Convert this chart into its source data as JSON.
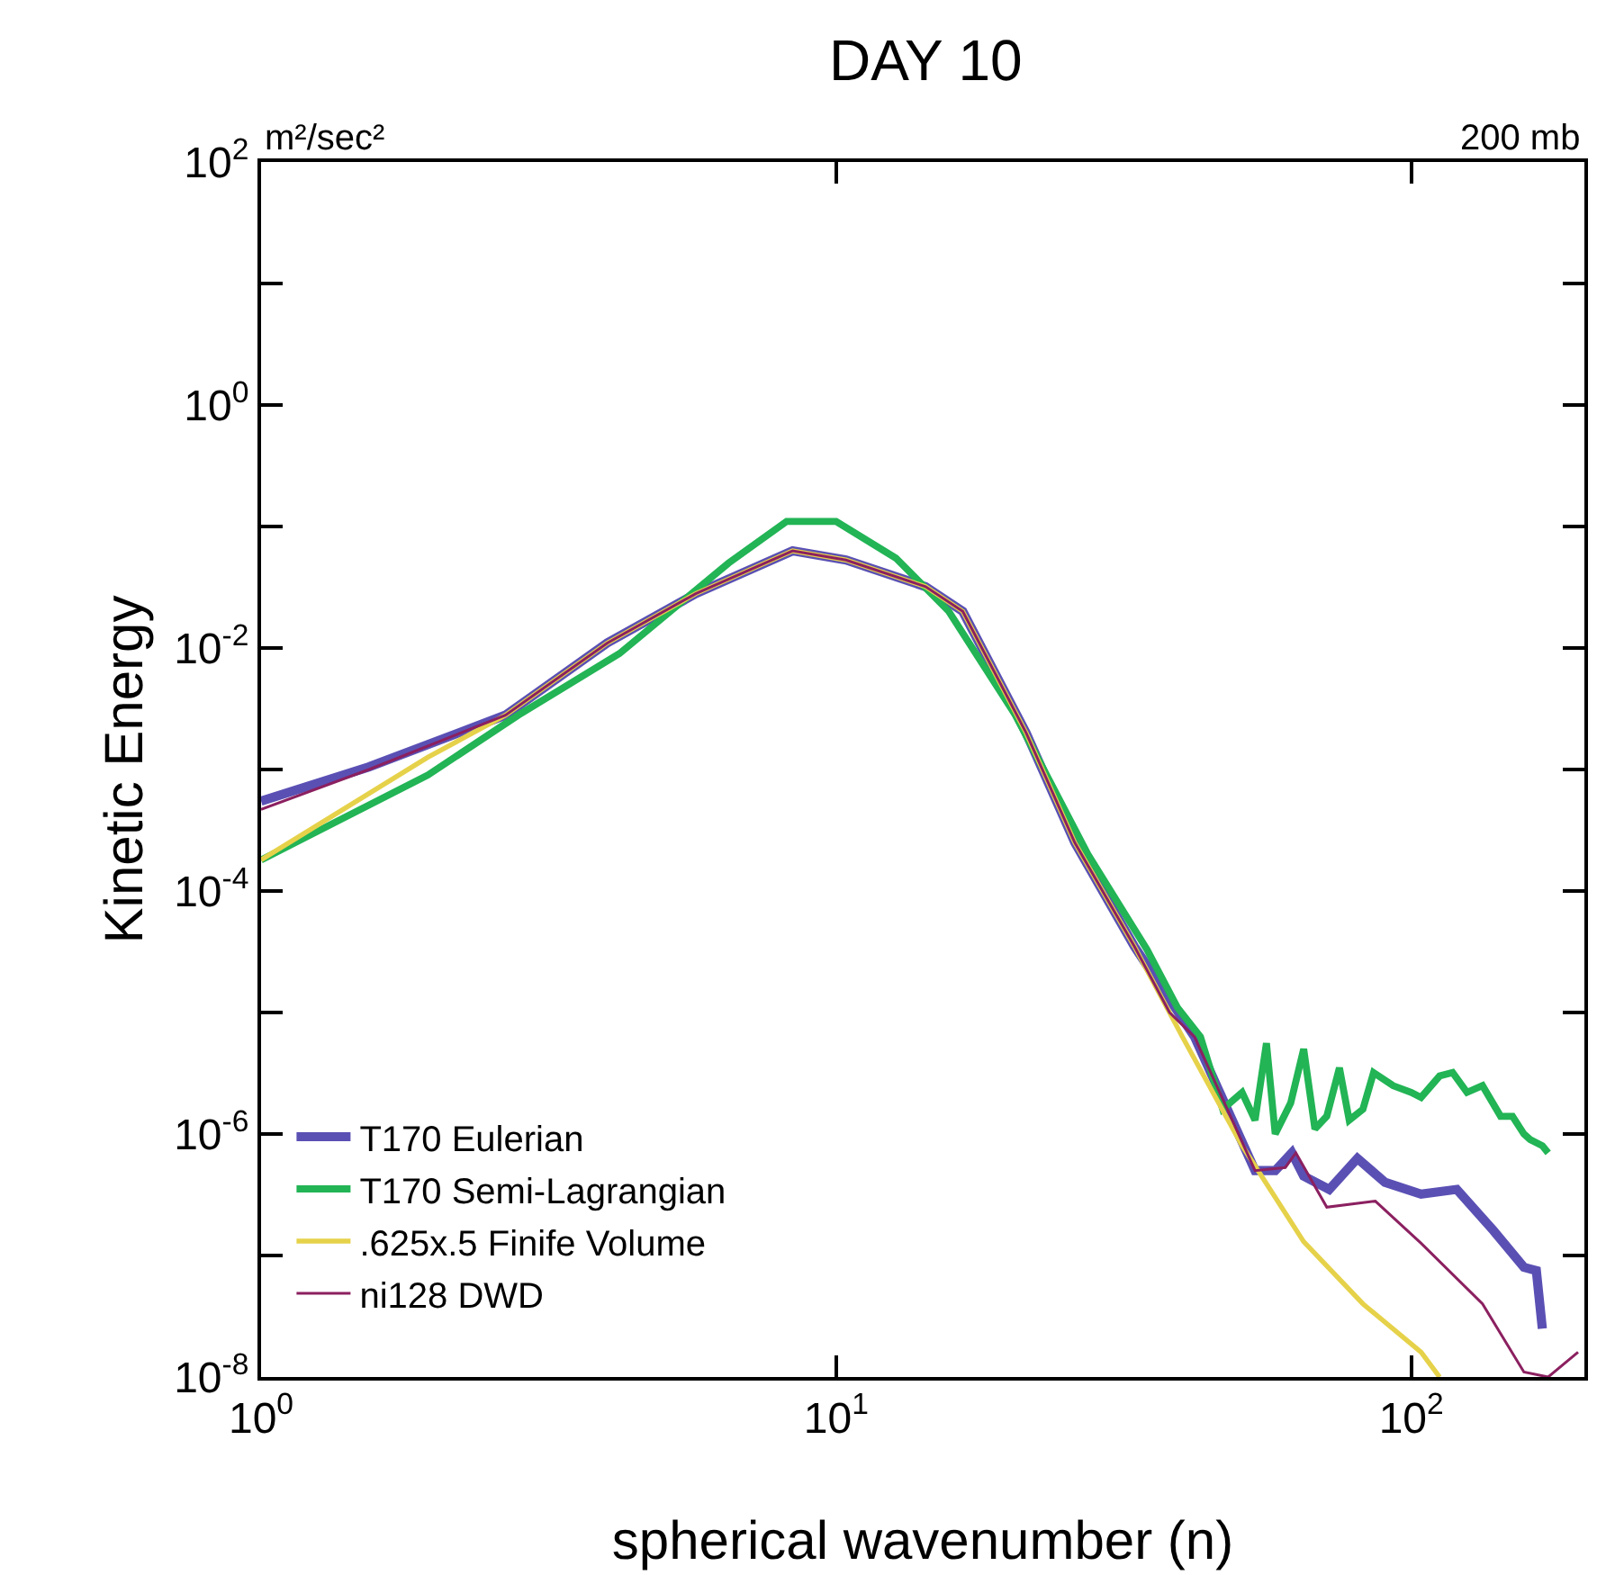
{
  "chart_data": {
    "type": "line",
    "title": "DAY 10",
    "xlabel": "spherical wavenumber (n)",
    "ylabel": "Kinetic Energy",
    "annotations": [
      "m²/sec²",
      "200 mb"
    ],
    "log": "xy",
    "grid": false,
    "legend": "bottom left",
    "marker": "none",
    "line_style": "solid",
    "xlim": [
      1,
      200
    ],
    "xticks": [
      {
        "value": 1,
        "label": "10$^{0}$"
      },
      {
        "value": 10,
        "label": "10$^{1}$"
      },
      {
        "value": 100,
        "label": "10$^{2}$"
      }
    ],
    "ylim": [
      1e-08,
      100
    ],
    "yticks": [
      {
        "value": 1e-08,
        "label": "10$^{-8}$"
      },
      {
        "value": 1e-07,
        "label": null
      },
      {
        "value": 1e-06,
        "label": "10$^{-6}$"
      },
      {
        "value": 1e-05,
        "label": null
      },
      {
        "value": 0.0001,
        "label": "10$^{-4}$"
      },
      {
        "value": 0.001,
        "label": null
      },
      {
        "value": 0.01,
        "label": "10$^{-2}$"
      },
      {
        "value": 0.1,
        "label": null
      },
      {
        "value": 1,
        "label": "10$^{0}$"
      },
      {
        "value": 10,
        "label": null
      },
      {
        "value": 100,
        "label": "10$^{2}$"
      }
    ],
    "series": [
      {
        "name": "T170 Eulerian",
        "color": "#5a50b4",
        "x": [
          1,
          1.54,
          2.66,
          4.0,
          5.7,
          8.4,
          10.4,
          14.3,
          16.6,
          21.4,
          26,
          33,
          42,
          53.5,
          58,
          62,
          65,
          72,
          80.6,
          90,
          104,
          120,
          139,
          157,
          165,
          169
        ],
        "values": [
          0.00055,
          0.00105,
          0.0028,
          0.011,
          0.028,
          0.063,
          0.053,
          0.032,
          0.02,
          0.002,
          0.00025,
          3.5e-05,
          6.3e-06,
          5e-07,
          5e-07,
          7e-07,
          4.5e-07,
          3.5e-07,
          6.3e-07,
          4e-07,
          3.2e-07,
          3.5e-07,
          1.6e-07,
          8e-08,
          7.5e-08,
          2.5e-08
        ]
      },
      {
        "name": "T170 Semi-Lagrangian",
        "color": "#22b455",
        "x": [
          1,
          1.95,
          2.8,
          4.2,
          6.5,
          8.2,
          10,
          12.7,
          15.7,
          20.5,
          27.4,
          34.7,
          39.2,
          43,
          47,
          50.8,
          53.5,
          56,
          58,
          61.7,
          65,
          68,
          71.3,
          75,
          78,
          82.4,
          86,
          93,
          100,
          104,
          112,
          118,
          125,
          133,
          143,
          150,
          157,
          161,
          169,
          173
        ],
        "values": [
          0.00018,
          0.0009,
          0.0028,
          0.009,
          0.05,
          0.11,
          0.11,
          0.055,
          0.02,
          0.0028,
          0.0002,
          3.3e-05,
          1.1e-05,
          6.3e-06,
          1.6e-06,
          2.2e-06,
          1.3e-06,
          5.6e-06,
          1e-06,
          1.8e-06,
          5e-06,
          1.1e-06,
          1.4e-06,
          3.5e-06,
          1.3e-06,
          1.6e-06,
          3.2e-06,
          2.5e-06,
          2.2e-06,
          2e-06,
          3e-06,
          3.2e-06,
          2.2e-06,
          2.5e-06,
          1.4e-06,
          1.4e-06,
          1e-06,
          9e-07,
          8e-07,
          7e-07
        ]
      },
      {
        "name": ".625x.5 Finife Volume",
        "color": "#e6d24a",
        "x": [
          1,
          1.95,
          2.66,
          4.0,
          5.7,
          8.4,
          10.4,
          14.3,
          16.6,
          21.4,
          26,
          33,
          40,
          50.8,
          65,
          82.4,
          104,
          112
        ],
        "values": [
          0.00018,
          0.00126,
          0.0028,
          0.011,
          0.028,
          0.063,
          0.053,
          0.032,
          0.02,
          0.002,
          0.00025,
          3.5e-05,
          6.3e-06,
          8e-07,
          1.3e-07,
          4e-08,
          1.6e-08,
          1e-08
        ]
      },
      {
        "name": "ni128 DWD",
        "color": "#8b2060",
        "x": [
          1,
          1.54,
          2.66,
          4.0,
          5.7,
          8.4,
          10.4,
          14.3,
          16.6,
          21.4,
          26,
          33,
          38,
          42,
          53.5,
          60.4,
          63,
          71.3,
          86.6,
          104,
          133,
          157,
          173,
          195
        ],
        "values": [
          0.00047,
          0.001,
          0.0028,
          0.011,
          0.028,
          0.063,
          0.053,
          0.032,
          0.02,
          0.002,
          0.00025,
          3.5e-05,
          1e-05,
          6.3e-06,
          5e-07,
          5.3e-07,
          7e-07,
          2.5e-07,
          2.8e-07,
          1.26e-07,
          4e-08,
          1.1e-08,
          1e-08,
          1.6e-08
        ]
      }
    ]
  }
}
